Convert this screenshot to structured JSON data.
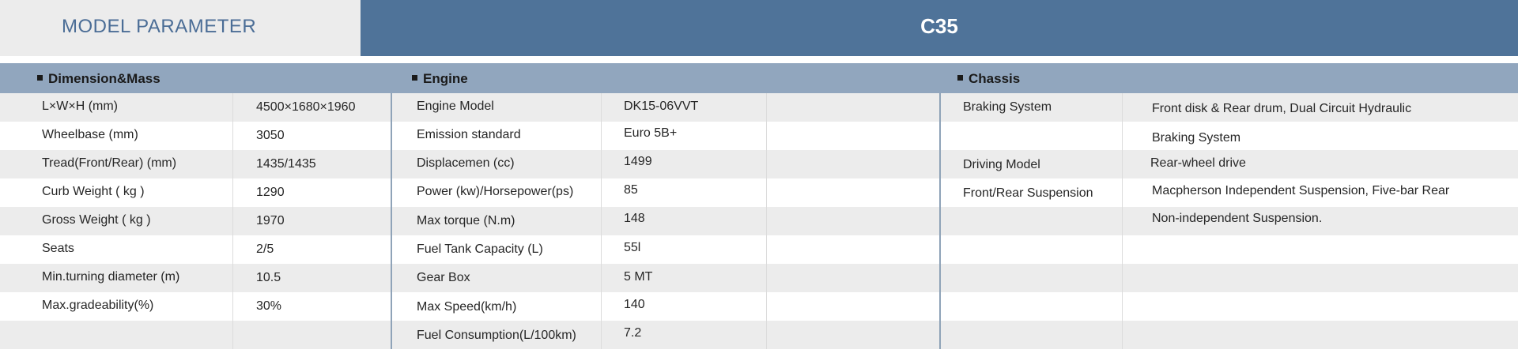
{
  "header": {
    "left_title": "MODEL PARAMETER",
    "model": "C35"
  },
  "sections": {
    "dimension": "Dimension&Mass",
    "engine": "Engine",
    "chassis": "Chassis"
  },
  "dimension_rows": [
    {
      "label": "L×W×H (mm)",
      "value": "4500×1680×1960"
    },
    {
      "label": "Wheelbase (mm)",
      "value": "3050"
    },
    {
      "label": "Tread(Front/Rear)  (mm)",
      "value": "1435/1435"
    },
    {
      "label": "Curb Weight ( kg )",
      "value": "1290"
    },
    {
      "label": "Gross Weight ( kg )",
      "value": "1970"
    },
    {
      "label": "Seats",
      "value": "2/5"
    },
    {
      "label": "Min.turning diameter  (m)",
      "value": "10.5"
    },
    {
      "label": "Max.gradeability(%)",
      "value": "30%"
    }
  ],
  "engine_rows": [
    {
      "label": "Engine Model",
      "value": "DK15-06VVT"
    },
    {
      "label": "Emission standard",
      "value": "Euro 5B+"
    },
    {
      "label": "Displacemen (cc)",
      "value": "1499"
    },
    {
      "label": "Power (kw)/Horsepower(ps)",
      "value": "85"
    },
    {
      "label": "Max torque (N.m)",
      "value": "148"
    },
    {
      "label": "Fuel Tank Capacity (L)",
      "value": "55l"
    },
    {
      "label": "Gear Box",
      "value": "5 MT"
    },
    {
      "label": "Max Speed(km/h)",
      "value": "140"
    },
    {
      "label": "Fuel Consumption(L/100km)",
      "value": "7.2"
    }
  ],
  "chassis_rows": [
    {
      "label": "Braking System",
      "value": "Front disk & Rear drum, Dual Circuit Hydraulic"
    },
    {
      "label": "",
      "value": "Braking System"
    },
    {
      "label": "Driving Model",
      "value": "Rear-wheel drive"
    },
    {
      "label": "Front/Rear Suspension",
      "value": "Macpherson Independent Suspension, Five-bar Rear"
    },
    {
      "label": "",
      "value": "Non-independent Suspension."
    }
  ]
}
